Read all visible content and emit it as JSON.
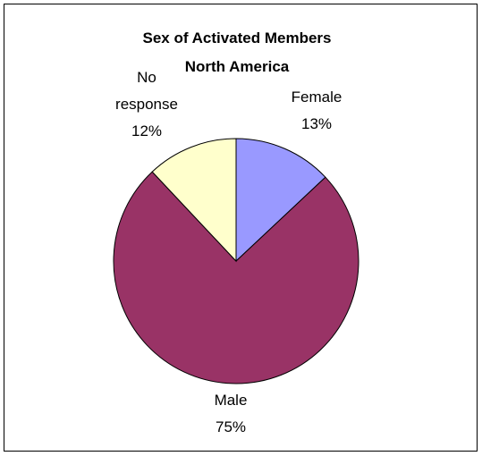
{
  "chart_data": {
    "type": "pie",
    "title": [
      "Sex of Activated Members",
      "North America"
    ],
    "slices": [
      {
        "label": "Female",
        "value": 13,
        "pct_label": "13%",
        "color": "#9999ff"
      },
      {
        "label": "Male",
        "value": 75,
        "pct_label": "75%",
        "color": "#993366"
      },
      {
        "label": [
          "No",
          "response"
        ],
        "value": 12,
        "pct_label": "12%",
        "color": "#ffffcc"
      }
    ],
    "legend": "none",
    "start_angle": "12 o'clock",
    "direction": "clockwise"
  }
}
